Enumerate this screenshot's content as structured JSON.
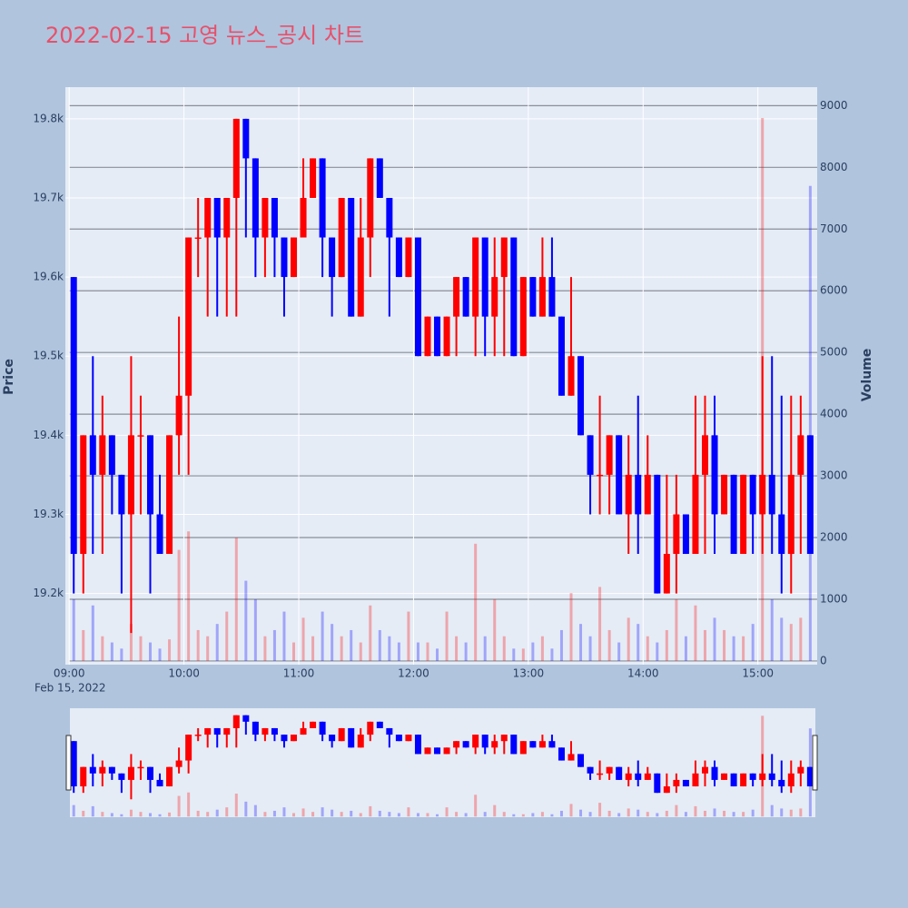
{
  "chart_data": {
    "type": "candlestick",
    "title": "2022-02-15 고영 뉴스_공시 차트",
    "x_date_label": "Feb 15, 2022",
    "y_axis_title": "Price",
    "y2_axis_title": "Volume",
    "increasing_color": "#ff0000",
    "decreasing_color": "#0000ff",
    "x": [
      "09:00",
      "09:05",
      "09:10",
      "09:15",
      "09:20",
      "09:25",
      "09:30",
      "09:35",
      "09:40",
      "09:45",
      "09:50",
      "09:55",
      "10:00",
      "10:05",
      "10:10",
      "10:15",
      "10:20",
      "10:25",
      "10:30",
      "10:35",
      "10:40",
      "10:45",
      "10:50",
      "10:55",
      "11:00",
      "11:05",
      "11:10",
      "11:15",
      "11:20",
      "11:25",
      "11:30",
      "11:35",
      "11:40",
      "11:45",
      "11:50",
      "11:55",
      "12:00",
      "12:05",
      "12:10",
      "12:15",
      "12:20",
      "12:25",
      "12:30",
      "12:35",
      "12:40",
      "12:45",
      "12:50",
      "12:55",
      "13:00",
      "13:05",
      "13:10",
      "13:15",
      "13:20",
      "13:25",
      "13:30",
      "13:35",
      "13:40",
      "13:45",
      "13:50",
      "13:55",
      "14:00",
      "14:05",
      "14:10",
      "14:15",
      "14:20",
      "14:25",
      "14:30",
      "14:35",
      "14:40",
      "14:45",
      "14:50",
      "14:55",
      "15:00",
      "15:05",
      "15:10",
      "15:15",
      "15:20",
      "15:25"
    ],
    "open": [
      19600,
      19250,
      19400,
      19350,
      19400,
      19350,
      19300,
      19400,
      19400,
      19300,
      19250,
      19400,
      19450,
      19650,
      19650,
      19700,
      19650,
      19700,
      19800,
      19750,
      19650,
      19700,
      19650,
      19600,
      19650,
      19700,
      19750,
      19650,
      19600,
      19700,
      19550,
      19650,
      19750,
      19700,
      19650,
      19600,
      19650,
      19500,
      19550,
      19500,
      19550,
      19600,
      19550,
      19650,
      19550,
      19600,
      19650,
      19500,
      19600,
      19550,
      19600,
      19550,
      19450,
      19500,
      19400,
      19350,
      19350,
      19400,
      19300,
      19350,
      19300,
      19350,
      19200,
      19250,
      19300,
      19250,
      19350,
      19400,
      19300,
      19350,
      19250,
      19350,
      19300,
      19350,
      19300,
      19250,
      19350,
      19400
    ],
    "high": [
      19600,
      19400,
      19500,
      19450,
      19400,
      19350,
      19500,
      19450,
      19400,
      19350,
      19400,
      19550,
      19650,
      19700,
      19700,
      19700,
      19700,
      19800,
      19800,
      19750,
      19700,
      19700,
      19650,
      19650,
      19750,
      19750,
      19750,
      19650,
      19700,
      19700,
      19700,
      19750,
      19750,
      19700,
      19650,
      19650,
      19650,
      19550,
      19550,
      19550,
      19600,
      19600,
      19650,
      19650,
      19650,
      19650,
      19650,
      19600,
      19600,
      19650,
      19650,
      19550,
      19600,
      19500,
      19400,
      19450,
      19400,
      19400,
      19400,
      19450,
      19400,
      19350,
      19350,
      19350,
      19300,
      19450,
      19450,
      19450,
      19350,
      19350,
      19350,
      19350,
      19500,
      19500,
      19450,
      19450,
      19450,
      19400
    ],
    "low": [
      19200,
      19200,
      19250,
      19250,
      19300,
      19200,
      19150,
      19300,
      19200,
      19250,
      19250,
      19350,
      19350,
      19600,
      19550,
      19550,
      19550,
      19550,
      19650,
      19600,
      19600,
      19600,
      19550,
      19600,
      19650,
      19700,
      19600,
      19550,
      19600,
      19550,
      19550,
      19600,
      19700,
      19550,
      19600,
      19600,
      19500,
      19500,
      19500,
      19500,
      19500,
      19550,
      19500,
      19500,
      19500,
      19500,
      19500,
      19500,
      19550,
      19550,
      19550,
      19450,
      19450,
      19400,
      19300,
      19300,
      19300,
      19300,
      19250,
      19250,
      19300,
      19200,
      19200,
      19200,
      19250,
      19250,
      19250,
      19250,
      19300,
      19250,
      19250,
      19250,
      19250,
      19250,
      19200,
      19200,
      19250,
      19250
    ],
    "close": [
      19250,
      19400,
      19350,
      19400,
      19350,
      19300,
      19400,
      19400,
      19300,
      19250,
      19400,
      19450,
      19650,
      19650,
      19700,
      19650,
      19700,
      19800,
      19750,
      19650,
      19700,
      19650,
      19600,
      19650,
      19700,
      19750,
      19650,
      19600,
      19700,
      19550,
      19650,
      19750,
      19700,
      19650,
      19600,
      19650,
      19500,
      19550,
      19500,
      19550,
      19600,
      19550,
      19650,
      19550,
      19600,
      19650,
      19500,
      19600,
      19550,
      19600,
      19550,
      19450,
      19500,
      19400,
      19350,
      19350,
      19400,
      19300,
      19350,
      19300,
      19350,
      19200,
      19250,
      19300,
      19250,
      19350,
      19400,
      19300,
      19350,
      19250,
      19350,
      19300,
      19350,
      19300,
      19250,
      19350,
      19400,
      19250
    ],
    "volume": [
      1000,
      500,
      900,
      400,
      300,
      200,
      600,
      400,
      300,
      200,
      350,
      1800,
      2100,
      500,
      400,
      600,
      800,
      2000,
      1300,
      1000,
      400,
      500,
      800,
      300,
      700,
      400,
      800,
      600,
      400,
      500,
      300,
      900,
      500,
      400,
      300,
      800,
      300,
      300,
      200,
      800,
      400,
      300,
      1900,
      400,
      1000,
      400,
      200,
      200,
      300,
      400,
      200,
      500,
      1100,
      600,
      400,
      1200,
      500,
      300,
      700,
      600,
      400,
      300,
      500,
      1000,
      400,
      900,
      500,
      700,
      500,
      400,
      400,
      600,
      8800,
      1000,
      700,
      600,
      700,
      7700
    ],
    "xlim": [
      "08:58",
      "15:31"
    ],
    "xticks": [
      "09:00",
      "10:00",
      "11:00",
      "12:00",
      "13:00",
      "14:00",
      "15:00"
    ],
    "ylim": [
      19110,
      19840
    ],
    "yticks": [
      {
        "value": 19200,
        "label": "19.2k"
      },
      {
        "value": 19300,
        "label": "19.3k"
      },
      {
        "value": 19400,
        "label": "19.4k"
      },
      {
        "value": 19500,
        "label": "19.5k"
      },
      {
        "value": 19600,
        "label": "19.6k"
      },
      {
        "value": 19700,
        "label": "19.7k"
      },
      {
        "value": 19800,
        "label": "19.8k"
      }
    ],
    "y2lim": [
      -60,
      9300
    ],
    "y2ticks": [
      0,
      1000,
      2000,
      3000,
      4000,
      5000,
      6000,
      7000,
      8000,
      9000
    ],
    "grid": true
  }
}
